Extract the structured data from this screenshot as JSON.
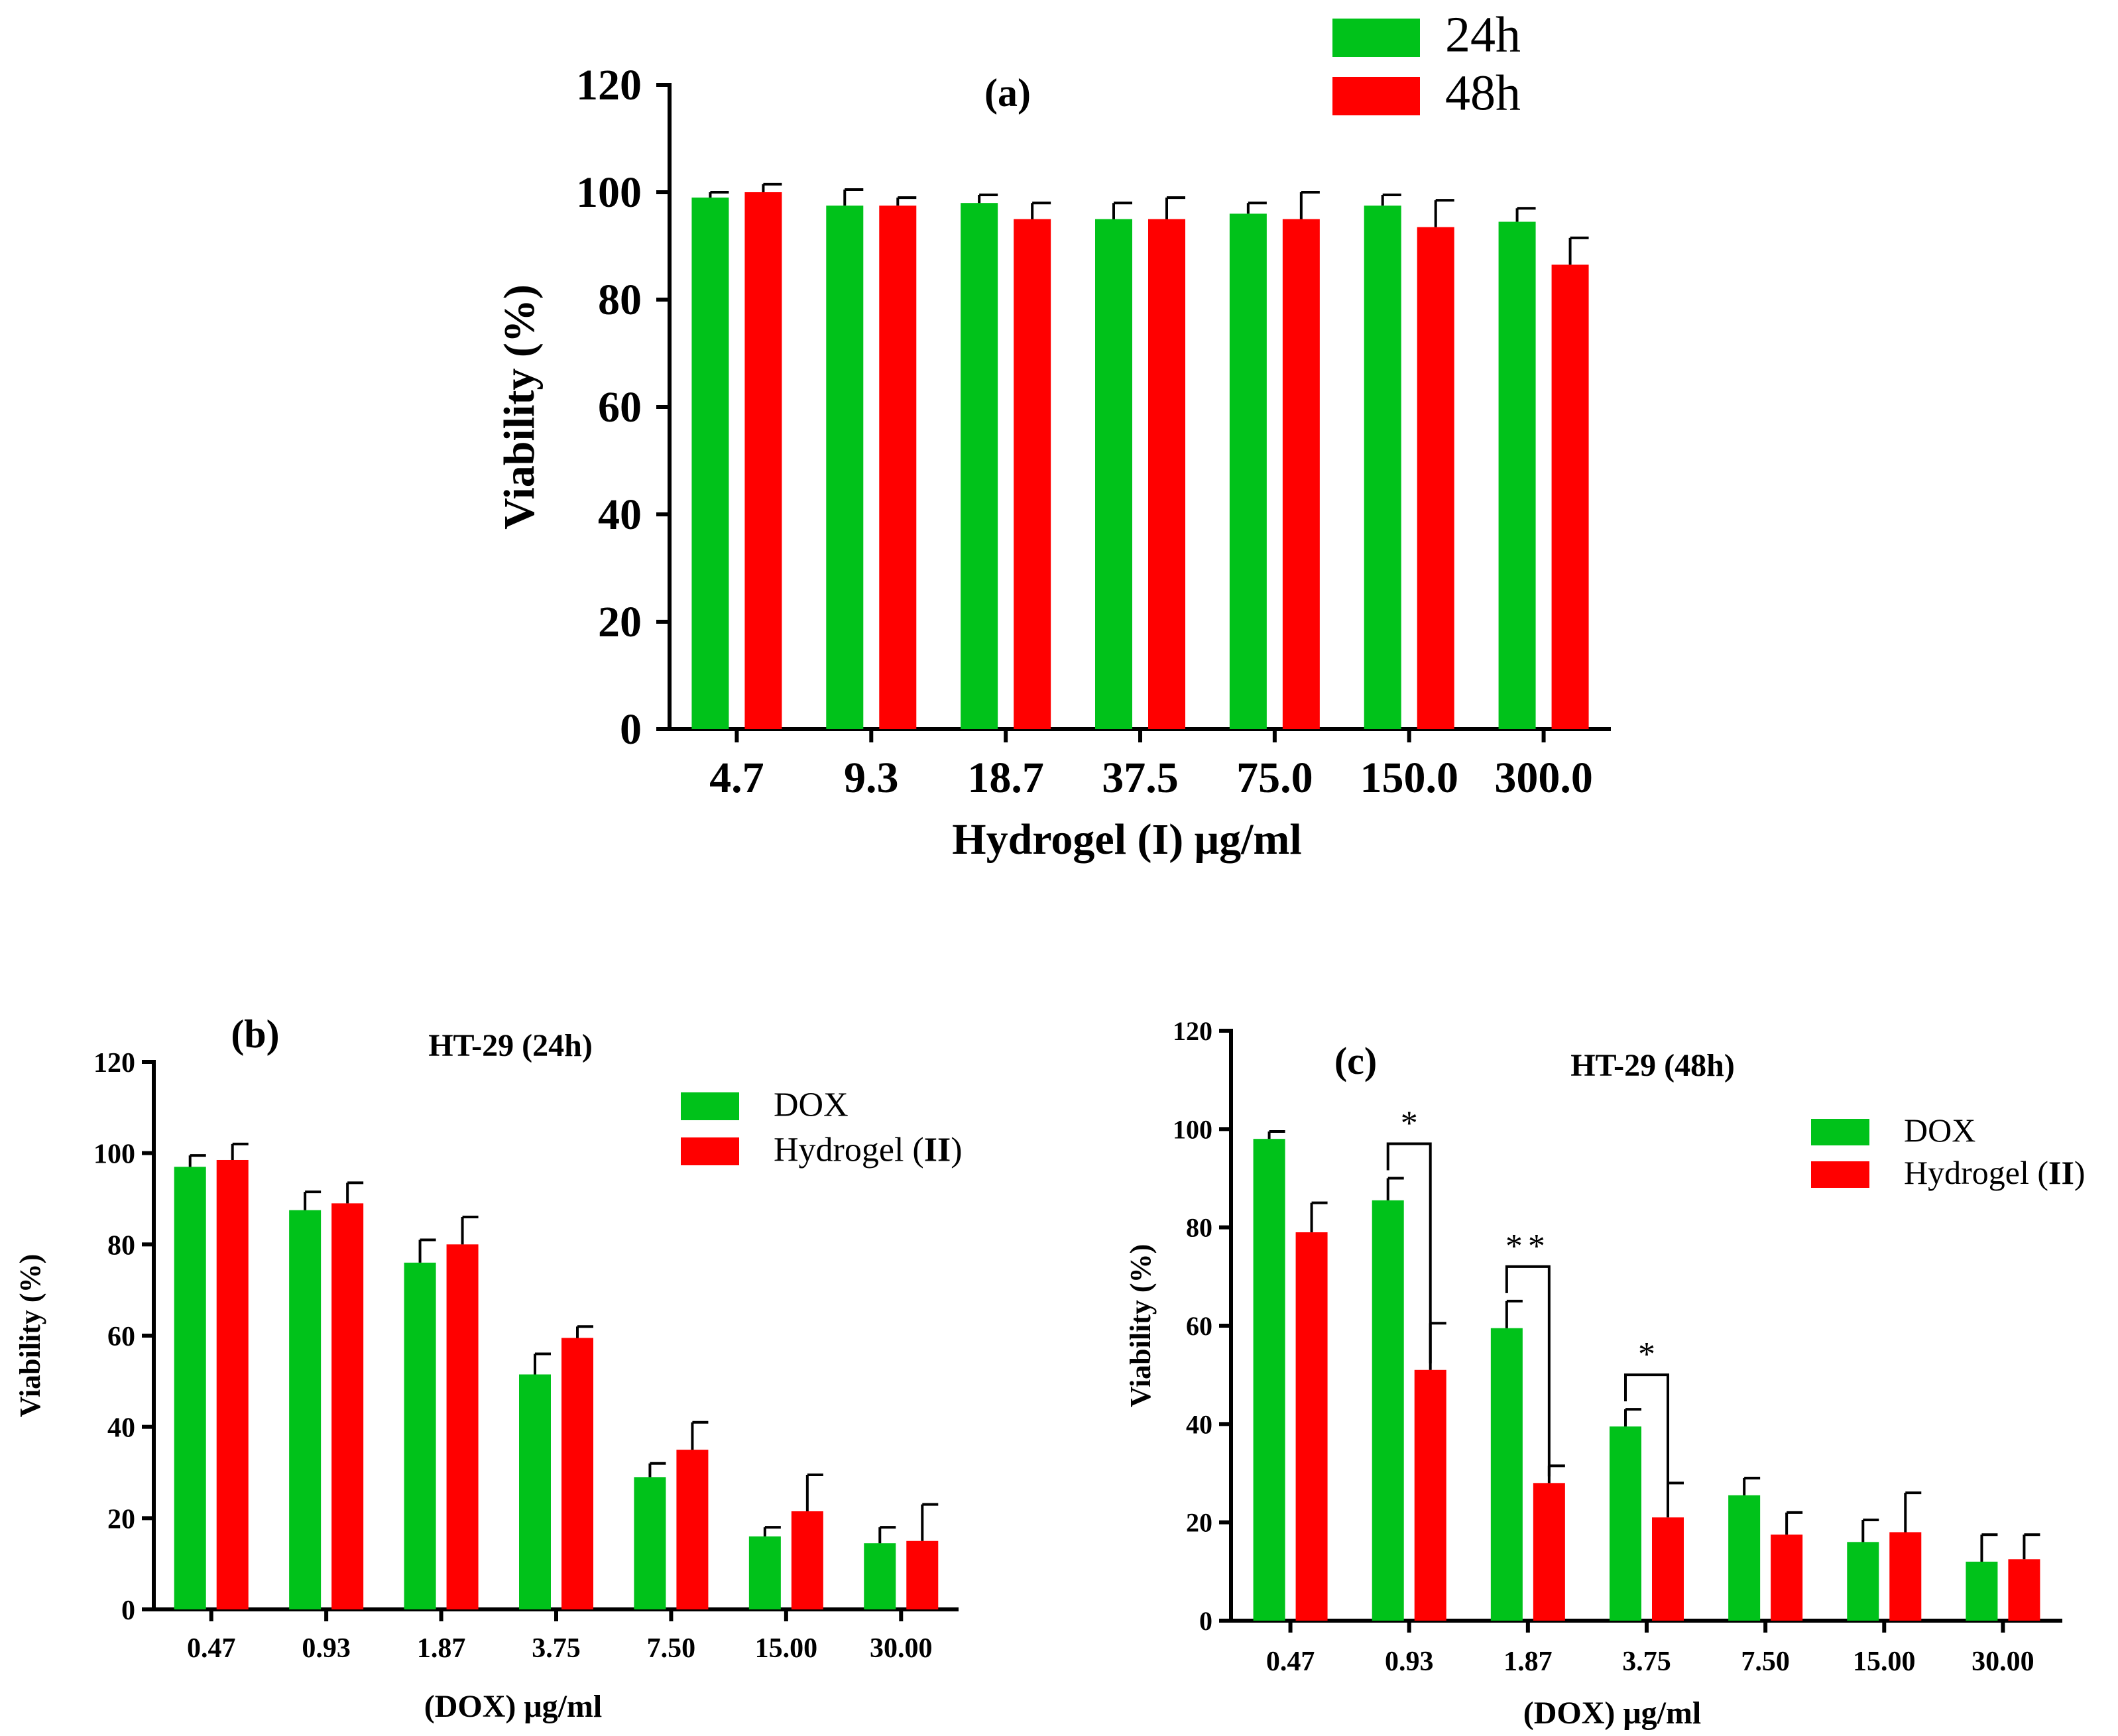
{
  "colors": {
    "green": "#00C21A",
    "red": "#FF0000",
    "axis": "#000000"
  },
  "chart_data": [
    {
      "id": "a",
      "type": "bar",
      "panel_label": "(a)",
      "title": "",
      "xlabel": "Hydrogel (I) μg/ml",
      "ylabel": "Viability (%)",
      "ylim": [
        0,
        120
      ],
      "yticks": [
        0,
        20,
        40,
        60,
        80,
        100,
        120
      ],
      "categories": [
        "4.7",
        "9.3",
        "18.7",
        "37.5",
        "75.0",
        "150.0",
        "300.0"
      ],
      "legend_position": "top-right",
      "series": [
        {
          "name": "24h",
          "color": "#00C21A",
          "values": [
            99,
            97.5,
            98,
            95,
            96,
            97.5,
            94.5
          ],
          "errors": [
            1,
            3,
            1.5,
            3,
            2,
            2,
            2.5
          ]
        },
        {
          "name": "48h",
          "color": "#FF0000",
          "values": [
            100,
            97.5,
            95,
            95,
            95,
            93.5,
            86.5
          ],
          "errors": [
            1.5,
            1.5,
            3,
            4,
            5,
            5,
            5
          ]
        }
      ],
      "annotations": []
    },
    {
      "id": "b",
      "type": "bar",
      "panel_label": "(b)",
      "title": "HT-29 (24h)",
      "xlabel": "(DOX) μg/ml",
      "ylabel": "Viability (%)",
      "ylim": [
        0,
        120
      ],
      "yticks": [
        0,
        20,
        40,
        60,
        80,
        100,
        120
      ],
      "categories": [
        "0.47",
        "0.93",
        "1.87",
        "3.75",
        "7.50",
        "15.00",
        "30.00"
      ],
      "legend_position": "top-right",
      "series": [
        {
          "name": "DOX",
          "name_suffix": "",
          "color": "#00C21A",
          "values": [
            97,
            87.5,
            76,
            51.5,
            29,
            16,
            14.5
          ],
          "errors": [
            2.5,
            4,
            5,
            4.5,
            3,
            2,
            3.5
          ]
        },
        {
          "name": "Hydrogel (",
          "name_strong": "II",
          "name_suffix": ")",
          "color": "#FF0000",
          "values": [
            98.5,
            89,
            80,
            59.5,
            35,
            21.5,
            15
          ],
          "errors": [
            3.5,
            4.5,
            6,
            2.5,
            6,
            8,
            8
          ]
        }
      ],
      "annotations": []
    },
    {
      "id": "c",
      "type": "bar",
      "panel_label": "(c)",
      "title": "HT-29 (48h)",
      "xlabel": "(DOX) μg/ml",
      "ylabel": "Viability (%)",
      "ylim": [
        0,
        120
      ],
      "yticks": [
        0,
        20,
        40,
        60,
        80,
        100,
        120
      ],
      "categories": [
        "0.47",
        "0.93",
        "1.87",
        "3.75",
        "7.50",
        "15.00",
        "30.00"
      ],
      "legend_position": "top-right",
      "series": [
        {
          "name": "DOX",
          "name_suffix": "",
          "color": "#00C21A",
          "values": [
            98,
            85.5,
            59.5,
            39.5,
            25.5,
            16,
            12
          ],
          "errors": [
            1.5,
            4.5,
            5.5,
            3.5,
            3.5,
            4.5,
            5.5
          ]
        },
        {
          "name": "Hydrogel (",
          "name_strong": "II",
          "name_suffix": ")",
          "color": "#FF0000",
          "values": [
            79,
            51,
            28,
            21,
            17.5,
            18,
            12.5
          ],
          "errors": [
            6,
            9.5,
            3.5,
            7,
            4.5,
            8,
            5
          ]
        }
      ],
      "annotations": [
        {
          "category_index": 1,
          "text": "*"
        },
        {
          "category_index": 2,
          "text": "**"
        },
        {
          "category_index": 3,
          "text": "*"
        }
      ]
    }
  ]
}
